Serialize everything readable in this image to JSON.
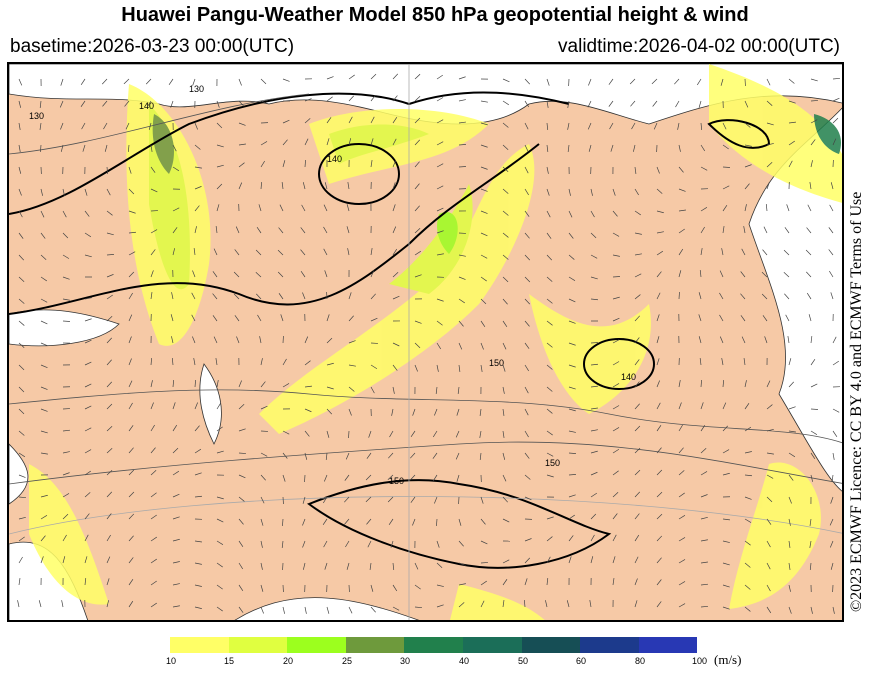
{
  "header": {
    "title": "Huawei Pangu-Weather Model 850 hPa geopotential height & wind",
    "basetime": "basetime:2026-03-23 00:00(UTC)",
    "validtime": "validtime:2026-04-02 00:00(UTC)"
  },
  "credit": "©2023 ECMWF Licence: CC BY 4.0 and ECMWF Terms of Use",
  "map": {
    "land_color": "#f6c9a6",
    "water_color": "#ffffff",
    "contour_labels": [
      "130",
      "140",
      "150",
      "140",
      "150",
      "150",
      "140",
      "130"
    ]
  },
  "colorbar": {
    "unit": "(m/s)",
    "ticks": [
      "10",
      "15",
      "20",
      "25",
      "30",
      "40",
      "50",
      "60",
      "80",
      "100"
    ],
    "colors": [
      "#ffff66",
      "#e0ff40",
      "#9cff1e",
      "#6e9a3c",
      "#21804c",
      "#1b6e58",
      "#164e55",
      "#1c3a8c",
      "#2838b4"
    ]
  }
}
